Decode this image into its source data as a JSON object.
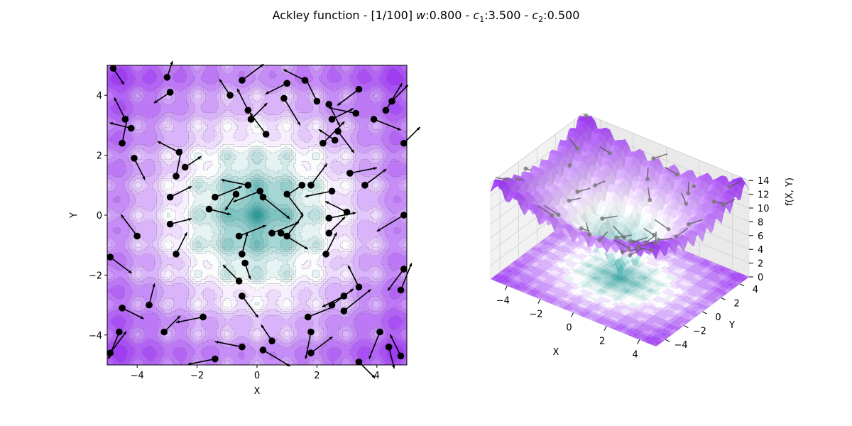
{
  "figure": {
    "title_prefix": "Ackley function - [1/100] ",
    "title_params": [
      {
        "sym": "w",
        "sub": "",
        "value": ":0.800"
      },
      {
        "sym": "c",
        "sub": "1",
        "value": ":3.500"
      },
      {
        "sym": "c",
        "sub": "2",
        "value": ":0.500"
      }
    ],
    "title_separator": " - "
  },
  "chart_data": [
    {
      "type": "contour",
      "function": "ackley",
      "xlabel": "X",
      "ylabel": "Y",
      "xlim": [
        -5,
        5
      ],
      "ylim": [
        -5,
        5
      ],
      "xticks": [
        -4,
        -2,
        0,
        2,
        4
      ],
      "yticks": [
        -4,
        -2,
        0,
        2,
        4
      ],
      "xticklabels": [
        "−4",
        "−2",
        "0",
        "2",
        "4"
      ],
      "yticklabels": [
        "−4",
        "−2",
        "0",
        "2",
        "4"
      ],
      "colormap": [
        "#2a9d9a",
        "#ffffff",
        "#9b34f2"
      ],
      "particles_estimated": [
        {
          "x": -4.8,
          "y": 4.9,
          "dx": 0.2,
          "dy": -0.3
        },
        {
          "x": -3,
          "y": 4.6,
          "dx": 0.1,
          "dy": 0.3
        },
        {
          "x": -2.9,
          "y": 4.1,
          "dx": -0.3,
          "dy": -0.2
        },
        {
          "x": -4.4,
          "y": 3.2,
          "dx": -0.2,
          "dy": 0.4
        },
        {
          "x": -4.2,
          "y": 2.9,
          "dx": -0.4,
          "dy": 0.1
        },
        {
          "x": -4.5,
          "y": 2.4,
          "dx": 0.1,
          "dy": 0.5
        },
        {
          "x": -4.1,
          "y": 1.9,
          "dx": 0.2,
          "dy": -0.4
        },
        {
          "x": -2.6,
          "y": 2.1,
          "dx": -0.4,
          "dy": 0.2
        },
        {
          "x": -2.4,
          "y": 1.6,
          "dx": 0.3,
          "dy": 0.2
        },
        {
          "x": -2.7,
          "y": 1.3,
          "dx": 0.1,
          "dy": 0.5
        },
        {
          "x": -2.9,
          "y": 0.6,
          "dx": 0.4,
          "dy": 0.2
        },
        {
          "x": -1.6,
          "y": 0.2,
          "dx": 0.4,
          "dy": -0.1
        },
        {
          "x": -1.4,
          "y": 0.6,
          "dx": 0.5,
          "dy": 0.2
        },
        {
          "x": -0.7,
          "y": 0.7,
          "dx": -0.2,
          "dy": -0.3
        },
        {
          "x": -0.3,
          "y": 1.0,
          "dx": -0.5,
          "dy": 0.1
        },
        {
          "x": -4.0,
          "y": -0.7,
          "dx": -0.3,
          "dy": 0.4
        },
        {
          "x": -2.9,
          "y": -0.3,
          "dx": 0.4,
          "dy": 0.1
        },
        {
          "x": -2.7,
          "y": -1.3,
          "dx": 0.2,
          "dy": 0.4
        },
        {
          "x": -4.9,
          "y": -1.4,
          "dx": 0.4,
          "dy": -0.3
        },
        {
          "x": -0.6,
          "y": -0.7,
          "dx": 0.5,
          "dy": 0.2
        },
        {
          "x": -0.5,
          "y": -1.3,
          "dx": 0.1,
          "dy": 0.4
        },
        {
          "x": -0.4,
          "y": -1.6,
          "dx": 0.1,
          "dy": -0.3
        },
        {
          "x": -0.6,
          "y": -2.2,
          "dx": -0.3,
          "dy": 0.3
        },
        {
          "x": -0.5,
          "y": -2.7,
          "dx": 0.3,
          "dy": -0.4
        },
        {
          "x": -4.5,
          "y": -3.1,
          "dx": 0.4,
          "dy": -0.2
        },
        {
          "x": -3.6,
          "y": -3.0,
          "dx": 0.1,
          "dy": 0.4
        },
        {
          "x": -1.8,
          "y": -3.4,
          "dx": -0.5,
          "dy": -0.1
        },
        {
          "x": -3.1,
          "y": -3.9,
          "dx": 0.3,
          "dy": 0.3
        },
        {
          "x": -4.6,
          "y": -3.9,
          "dx": -0.2,
          "dy": -0.5
        },
        {
          "x": -4.9,
          "y": -4.6,
          "dx": 0.3,
          "dy": 0.4
        },
        {
          "x": -1.4,
          "y": -4.8,
          "dx": -0.5,
          "dy": -0.1
        },
        {
          "x": -0.5,
          "y": -4.4,
          "dx": -0.5,
          "dy": 0.1
        },
        {
          "x": 0.2,
          "y": -4.5,
          "dx": 0.5,
          "dy": -0.3
        },
        {
          "x": 0.5,
          "y": -4.2,
          "dx": -0.2,
          "dy": 0.3
        },
        {
          "x": 1.7,
          "y": -3.4,
          "dx": 0.5,
          "dy": 0.2
        },
        {
          "x": 1.8,
          "y": -3.9,
          "dx": -0.1,
          "dy": -0.5
        },
        {
          "x": 2.5,
          "y": -3.0,
          "dx": 0.4,
          "dy": 0.3
        },
        {
          "x": 2.9,
          "y": -2.7,
          "dx": -0.4,
          "dy": -0.2
        },
        {
          "x": 2.9,
          "y": -3.2,
          "dx": 0.5,
          "dy": 0.4
        },
        {
          "x": 3.4,
          "y": -2.4,
          "dx": -0.2,
          "dy": 0.4
        },
        {
          "x": 3.4,
          "y": -4.9,
          "dx": 0.3,
          "dy": -0.3
        },
        {
          "x": 1.8,
          "y": -4.6,
          "dx": 0.4,
          "dy": 0.3
        },
        {
          "x": 4.1,
          "y": -3.9,
          "dx": -0.2,
          "dy": -0.5
        },
        {
          "x": 4.4,
          "y": -4.4,
          "dx": 0.1,
          "dy": -0.4
        },
        {
          "x": 4.8,
          "y": -4.7,
          "dx": -0.2,
          "dy": 0.4
        },
        {
          "x": 4.9,
          "y": -1.8,
          "dx": -0.3,
          "dy": -0.4
        },
        {
          "x": 4.8,
          "y": -2.5,
          "dx": 0.2,
          "dy": 0.5
        },
        {
          "x": 4.9,
          "y": 0.0,
          "dx": -0.5,
          "dy": -0.3
        },
        {
          "x": 2.3,
          "y": -1.3,
          "dx": 0.2,
          "dy": 0.4
        },
        {
          "x": 2.4,
          "y": -0.6,
          "dx": 0.3,
          "dy": 0.3
        },
        {
          "x": 2.4,
          "y": -0.1,
          "dx": 0.5,
          "dy": 0.1
        },
        {
          "x": 3.0,
          "y": 0.1,
          "dx": -0.4,
          "dy": 0.2
        },
        {
          "x": 0.5,
          "y": -0.6,
          "dx": 0.5,
          "dy": 0.2
        },
        {
          "x": 0.8,
          "y": -0.6,
          "dx": 0.5,
          "dy": -0.3
        },
        {
          "x": 1.0,
          "y": -0.7,
          "dx": 0.3,
          "dy": 0.4
        },
        {
          "x": 1.0,
          "y": 0.7,
          "dx": 0.3,
          "dy": -0.4
        },
        {
          "x": 0.1,
          "y": 0.8,
          "dx": -0.5,
          "dy": -0.2
        },
        {
          "x": 0.2,
          "y": 0.6,
          "dx": 0.5,
          "dy": -0.4
        },
        {
          "x": 1.5,
          "y": 1.0,
          "dx": -0.3,
          "dy": -0.2
        },
        {
          "x": 1.8,
          "y": 1.0,
          "dx": 0.3,
          "dy": 0.4
        },
        {
          "x": 2.5,
          "y": 0.8,
          "dx": -0.5,
          "dy": -0.1
        },
        {
          "x": 3.1,
          "y": 1.4,
          "dx": 0.5,
          "dy": 0.1
        },
        {
          "x": 3.6,
          "y": 1.0,
          "dx": 0.4,
          "dy": 0.3
        },
        {
          "x": 2.2,
          "y": 2.4,
          "dx": 0.4,
          "dy": 0.4
        },
        {
          "x": 2.6,
          "y": 2.5,
          "dx": -0.3,
          "dy": 0.2
        },
        {
          "x": 2.7,
          "y": 2.8,
          "dx": 0.3,
          "dy": -0.4
        },
        {
          "x": 0.3,
          "y": 2.7,
          "dx": -0.3,
          "dy": 0.4
        },
        {
          "x": -0.2,
          "y": 3.2,
          "dx": 0.3,
          "dy": 0.3
        },
        {
          "x": -0.3,
          "y": 3.5,
          "dx": -0.2,
          "dy": 0.4
        },
        {
          "x": 0.9,
          "y": 3.9,
          "dx": 0.3,
          "dy": -0.5
        },
        {
          "x": 1.0,
          "y": 4.4,
          "dx": -0.4,
          "dy": -0.2
        },
        {
          "x": 1.6,
          "y": 4.5,
          "dx": -0.4,
          "dy": 0.2
        },
        {
          "x": 2.0,
          "y": 3.8,
          "dx": -0.2,
          "dy": 0.4
        },
        {
          "x": 2.5,
          "y": 3.2,
          "dx": 0.4,
          "dy": 0.2
        },
        {
          "x": 2.4,
          "y": 3.7,
          "dx": 0.2,
          "dy": -0.4
        },
        {
          "x": 3.3,
          "y": 3.4,
          "dx": -0.5,
          "dy": 0.1
        },
        {
          "x": 3.9,
          "y": 3.2,
          "dx": 0.5,
          "dy": -0.2
        },
        {
          "x": 4.3,
          "y": 3.5,
          "dx": 0.3,
          "dy": 0.5
        },
        {
          "x": 4.5,
          "y": 3.8,
          "dx": 0.3,
          "dy": 0.3
        },
        {
          "x": -0.9,
          "y": 4.0,
          "dx": -0.2,
          "dy": 0.3
        },
        {
          "x": -0.5,
          "y": 4.5,
          "dx": 0.4,
          "dy": 0.3
        },
        {
          "x": 3.4,
          "y": 4.2,
          "dx": -0.4,
          "dy": -0.3
        },
        {
          "x": 4.9,
          "y": 2.4,
          "dx": 0.3,
          "dy": 0.3
        }
      ]
    },
    {
      "type": "surface3d",
      "function": "ackley",
      "xlabel": "X",
      "ylabel": "Y",
      "zlabel": "f(X, Y)",
      "xlim": [
        -5,
        5
      ],
      "ylim": [
        -5,
        5
      ],
      "zlim": [
        0,
        14
      ],
      "xticklabels": [
        "−4",
        "−2",
        "0",
        "2",
        "4"
      ],
      "yticklabels": [
        "−4",
        "−2",
        "0",
        "2",
        "4"
      ],
      "zticklabels": [
        "0",
        "2",
        "4",
        "6",
        "8",
        "10",
        "12",
        "14"
      ],
      "colormap": [
        "#2a9d9a",
        "#ffffff",
        "#9b34f2"
      ]
    }
  ]
}
